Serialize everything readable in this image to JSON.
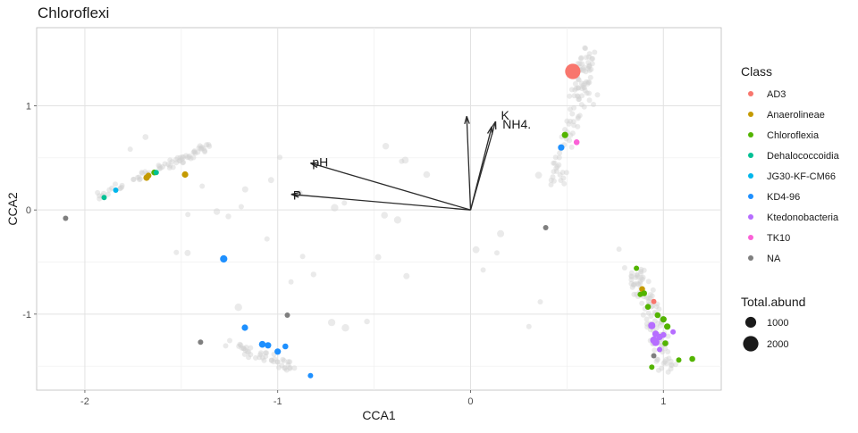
{
  "chart_data": {
    "type": "scatter",
    "title": "Chloroflexi",
    "xlabel": "CCA1",
    "ylabel": "CCA2",
    "xlim": [
      -2.25,
      1.3
    ],
    "ylim": [
      -1.73,
      1.75
    ],
    "x_ticks": [
      -2,
      -1,
      0,
      1
    ],
    "x_tick_labels": [
      "-2",
      "-1",
      "0",
      "1"
    ],
    "y_ticks": [
      -1,
      0,
      1
    ],
    "y_tick_labels": [
      "-1",
      "0",
      "1"
    ],
    "grid": true,
    "legend_position": "right",
    "legend": {
      "color_title": "Class",
      "classes": [
        {
          "name": "AD3",
          "color": "#f8766d"
        },
        {
          "name": "Anaerolineae",
          "color": "#c49a00"
        },
        {
          "name": "Chloroflexia",
          "color": "#53b400"
        },
        {
          "name": "Dehalococcoidia",
          "color": "#00c094"
        },
        {
          "name": "JG30-KF-CM66",
          "color": "#00b6eb"
        },
        {
          "name": "KD4-96",
          "color": "#1e90ff"
        },
        {
          "name": "Ktedonobacteria",
          "color": "#b66dff"
        },
        {
          "name": "TK10",
          "color": "#fb61d7"
        },
        {
          "name": "NA",
          "color": "#7f7f7f"
        }
      ],
      "size_title": "Total.abund",
      "sizes": [
        {
          "label": "1000",
          "value": 1000
        },
        {
          "label": "2000",
          "value": 2000
        }
      ]
    },
    "arrows": [
      {
        "label": "pH",
        "x": -0.83,
        "y": 0.45
      },
      {
        "label": "P",
        "x": -0.93,
        "y": 0.15
      },
      {
        "label": "NH4.",
        "x": 0.11,
        "y": 0.8
      },
      {
        "label": "K",
        "x": 0.13,
        "y": 0.85
      },
      {
        "label": "",
        "x": -0.02,
        "y": 0.9
      }
    ],
    "colored_points": [
      {
        "class": "AD3",
        "x": 0.53,
        "y": 1.33,
        "abund": 2000
      },
      {
        "class": "AD3",
        "x": 0.95,
        "y": -0.88,
        "abund": 250
      },
      {
        "class": "Anaerolineae",
        "x": -1.68,
        "y": 0.31,
        "abund": 350
      },
      {
        "class": "Anaerolineae",
        "x": -1.67,
        "y": 0.33,
        "abund": 300
      },
      {
        "class": "Anaerolineae",
        "x": -1.48,
        "y": 0.34,
        "abund": 350
      },
      {
        "class": "Anaerolineae",
        "x": 0.89,
        "y": -0.76,
        "abund": 300
      },
      {
        "class": "Chloroflexia",
        "x": -1.64,
        "y": 0.36,
        "abund": 300
      },
      {
        "class": "Chloroflexia",
        "x": 0.49,
        "y": 0.72,
        "abund": 350
      },
      {
        "class": "Chloroflexia",
        "x": 0.86,
        "y": -0.56,
        "abund": 250
      },
      {
        "class": "Chloroflexia",
        "x": 0.88,
        "y": -0.81,
        "abund": 250
      },
      {
        "class": "Chloroflexia",
        "x": 0.9,
        "y": -0.8,
        "abund": 300
      },
      {
        "class": "Chloroflexia",
        "x": 0.92,
        "y": -0.93,
        "abund": 300
      },
      {
        "class": "Chloroflexia",
        "x": 0.97,
        "y": -1.01,
        "abund": 300
      },
      {
        "class": "Chloroflexia",
        "x": 1.0,
        "y": -1.05,
        "abund": 350
      },
      {
        "class": "Chloroflexia",
        "x": 1.02,
        "y": -1.12,
        "abund": 350
      },
      {
        "class": "Chloroflexia",
        "x": 1.01,
        "y": -1.28,
        "abund": 300
      },
      {
        "class": "Chloroflexia",
        "x": 0.94,
        "y": -1.51,
        "abund": 250
      },
      {
        "class": "Chloroflexia",
        "x": 1.08,
        "y": -1.44,
        "abund": 250
      },
      {
        "class": "Chloroflexia",
        "x": 1.15,
        "y": -1.43,
        "abund": 300
      },
      {
        "class": "Dehalococcoidia",
        "x": -1.9,
        "y": 0.12,
        "abund": 250
      },
      {
        "class": "Dehalococcoidia",
        "x": -1.63,
        "y": 0.36,
        "abund": 250
      },
      {
        "class": "JG30-KF-CM66",
        "x": -1.84,
        "y": 0.19,
        "abund": 250
      },
      {
        "class": "KD4-96",
        "x": 0.47,
        "y": 0.6,
        "abund": 350
      },
      {
        "class": "KD4-96",
        "x": -1.28,
        "y": -0.47,
        "abund": 450
      },
      {
        "class": "KD4-96",
        "x": -1.17,
        "y": -1.13,
        "abund": 350
      },
      {
        "class": "KD4-96",
        "x": -1.08,
        "y": -1.29,
        "abund": 400
      },
      {
        "class": "KD4-96",
        "x": -1.05,
        "y": -1.3,
        "abund": 350
      },
      {
        "class": "KD4-96",
        "x": -1.0,
        "y": -1.36,
        "abund": 350
      },
      {
        "class": "KD4-96",
        "x": -0.96,
        "y": -1.31,
        "abund": 300
      },
      {
        "class": "KD4-96",
        "x": -0.83,
        "y": -1.59,
        "abund": 250
      },
      {
        "class": "Ktedonobacteria",
        "x": 0.94,
        "y": -1.11,
        "abund": 450
      },
      {
        "class": "Ktedonobacteria",
        "x": 0.96,
        "y": -1.19,
        "abund": 400
      },
      {
        "class": "Ktedonobacteria",
        "x": 0.98,
        "y": -1.22,
        "abund": 350
      },
      {
        "class": "Ktedonobacteria",
        "x": 0.95,
        "y": -1.25,
        "abund": 450
      },
      {
        "class": "Ktedonobacteria",
        "x": 0.96,
        "y": -1.27,
        "abund": 500
      },
      {
        "class": "Ktedonobacteria",
        "x": 1.0,
        "y": -1.2,
        "abund": 300
      },
      {
        "class": "Ktedonobacteria",
        "x": 1.05,
        "y": -1.17,
        "abund": 250
      },
      {
        "class": "Ktedonobacteria",
        "x": 0.98,
        "y": -1.34,
        "abund": 250
      },
      {
        "class": "TK10",
        "x": 0.55,
        "y": 0.65,
        "abund": 300
      },
      {
        "class": "NA",
        "x": -2.1,
        "y": -0.08,
        "abund": 250
      },
      {
        "class": "NA",
        "x": 0.39,
        "y": -0.17,
        "abund": 250
      },
      {
        "class": "NA",
        "x": -1.4,
        "y": -1.27,
        "abund": 250
      },
      {
        "class": "NA",
        "x": -0.95,
        "y": -1.01,
        "abund": 250
      },
      {
        "class": "NA",
        "x": 0.95,
        "y": -1.4,
        "abund": 250
      }
    ],
    "background_point_color": "#d0d0d0"
  }
}
